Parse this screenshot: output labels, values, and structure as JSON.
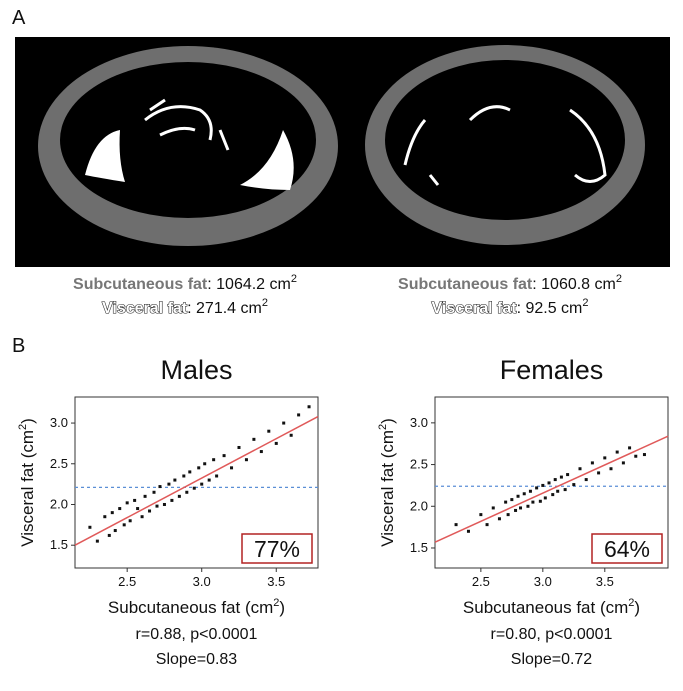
{
  "panels": [
    "A",
    "B"
  ],
  "images": [
    {
      "subcutaneous": {
        "name": "Subcutaneous fat",
        "text": ": 1064.2 cm",
        "sup": "2"
      },
      "visceral": {
        "name": "Visceral fat",
        "text": ": 271.4 cm",
        "sup": "2"
      }
    },
    {
      "subcutaneous": {
        "name": "Subcutaneous fat",
        "text": ": 1060.8 cm",
        "sup": "2"
      },
      "visceral": {
        "name": "Visceral fat",
        "text": ": 92.5 cm",
        "sup": "2"
      }
    }
  ],
  "chart_data": [
    {
      "type": "scatter",
      "title": "Males",
      "xlabel": "Subcutaneous fat (cm",
      "xlabel_sup": "2",
      "xlabel_end": ")",
      "ylabel": "Visceral fat (cm",
      "ylabel_sup": "2",
      "ylabel_end": ")",
      "stats": "r=0.88, p<0.0001",
      "slope": "Slope=0.83",
      "percent": "77%",
      "xlim": [
        2.15,
        3.78
      ],
      "ylim": [
        1.22,
        3.32
      ],
      "xticks": [
        2.5,
        {
          "value": 3,
          "label": "3.0"
        },
        3.5
      ],
      "yticks": [
        1.5,
        {
          "value": 2,
          "label": "2.0"
        },
        2.5,
        {
          "value": 3,
          "label": "3.0"
        }
      ],
      "color": "#111111",
      "fit_color": "#e05a5a",
      "threshold_color": "#5b8fd6",
      "fit": {
        "x": [
          2.15,
          3.78
        ],
        "y": [
          1.5,
          3.08
        ]
      },
      "threshold": 2.21,
      "x": [
        2.25,
        2.3,
        2.35,
        2.38,
        2.4,
        2.42,
        2.45,
        2.48,
        2.5,
        2.52,
        2.55,
        2.57,
        2.6,
        2.62,
        2.65,
        2.68,
        2.7,
        2.72,
        2.75,
        2.78,
        2.8,
        2.82,
        2.85,
        2.88,
        2.9,
        2.92,
        2.95,
        2.98,
        3.0,
        3.02,
        3.05,
        3.08,
        3.1,
        3.15,
        3.2,
        3.25,
        3.3,
        3.35,
        3.4,
        3.45,
        3.5,
        3.55,
        3.6,
        3.65,
        3.72
      ],
      "values": [
        1.72,
        1.55,
        1.85,
        1.62,
        1.9,
        1.68,
        1.95,
        1.75,
        2.02,
        1.8,
        2.05,
        1.95,
        1.85,
        2.1,
        1.92,
        2.15,
        1.98,
        2.22,
        2.0,
        2.25,
        2.05,
        2.3,
        2.1,
        2.35,
        2.15,
        2.4,
        2.2,
        2.45,
        2.25,
        2.5,
        2.3,
        2.55,
        2.35,
        2.6,
        2.45,
        2.7,
        2.55,
        2.8,
        2.65,
        2.9,
        2.75,
        3.0,
        2.85,
        3.1,
        3.2
      ]
    },
    {
      "type": "scatter",
      "title": "Females",
      "xlabel": "Subcutaneous fat (cm",
      "xlabel_sup": "2",
      "xlabel_end": ")",
      "ylabel": "Visceral fat (cm",
      "ylabel_sup": "2",
      "ylabel_end": ")",
      "stats": "r=0.80, p<0.0001",
      "slope": "Slope=0.72",
      "percent": "64%",
      "xlim": [
        2.13,
        4.01
      ],
      "ylim": [
        1.26,
        3.31
      ],
      "xticks": [
        2.5,
        {
          "value": 3,
          "label": "3.0"
        },
        3.5
      ],
      "yticks": [
        1.5,
        {
          "value": 2,
          "label": "2.0"
        },
        2.5,
        {
          "value": 3,
          "label": "3.0"
        }
      ],
      "color": "#111111",
      "fit_color": "#e05a5a",
      "threshold_color": "#5b8fd6",
      "fit": {
        "x": [
          2.13,
          4.01
        ],
        "y": [
          1.57,
          2.84
        ]
      },
      "threshold": 2.24,
      "x": [
        2.3,
        2.4,
        2.5,
        2.55,
        2.6,
        2.65,
        2.7,
        2.72,
        2.75,
        2.78,
        2.8,
        2.82,
        2.85,
        2.88,
        2.9,
        2.92,
        2.95,
        2.98,
        3.0,
        3.02,
        3.05,
        3.08,
        3.1,
        3.12,
        3.15,
        3.18,
        3.2,
        3.25,
        3.3,
        3.35,
        3.4,
        3.45,
        3.5,
        3.55,
        3.6,
        3.65,
        3.7,
        3.75,
        3.82
      ],
      "values": [
        1.78,
        1.7,
        1.9,
        1.78,
        1.98,
        1.85,
        2.05,
        1.9,
        2.08,
        1.95,
        2.12,
        1.98,
        2.15,
        2.0,
        2.18,
        2.05,
        2.22,
        2.06,
        2.25,
        2.1,
        2.28,
        2.14,
        2.32,
        2.18,
        2.35,
        2.2,
        2.38,
        2.26,
        2.45,
        2.32,
        2.52,
        2.4,
        2.58,
        2.45,
        2.65,
        2.52,
        2.7,
        2.6,
        2.62
      ]
    }
  ]
}
